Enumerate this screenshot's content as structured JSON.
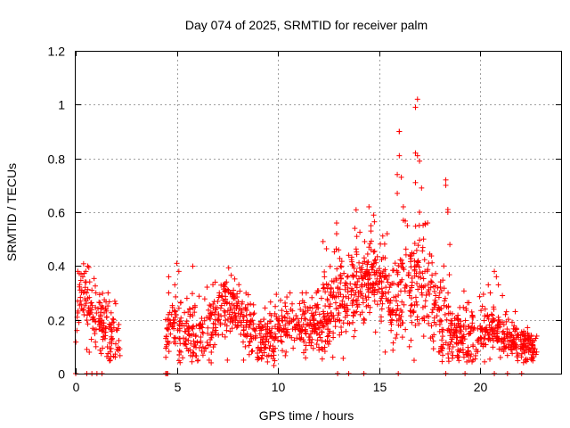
{
  "chart_data": {
    "type": "scatter",
    "title": "Day 074 of 2025, SRMTID for receiver palm",
    "xlabel": "GPS time / hours",
    "ylabel": "SRMTID / TECUs",
    "xlim": [
      0,
      24
    ],
    "ylim": [
      0,
      1.2
    ],
    "xticks": [
      0,
      5,
      10,
      15,
      20
    ],
    "xtick_labels": [
      "0",
      "5",
      "10",
      "15",
      "20"
    ],
    "yticks": [
      0,
      0.2,
      0.4,
      0.6,
      0.8,
      1.0,
      1.2
    ],
    "ytick_labels": [
      "0",
      "0.2",
      "0.4",
      "0.6",
      "0.8",
      "1",
      "1.2"
    ],
    "grid": true,
    "marker": "+",
    "color": "#ff0000",
    "series": [
      {
        "name": "SRMTID",
        "segments": [
          {
            "start": 0.0,
            "end": 2.2,
            "n": 170,
            "base": [
              [
                0.0,
                0.17
              ],
              [
                0.3,
                0.3
              ],
              [
                0.7,
                0.24
              ],
              [
                1.2,
                0.18
              ],
              [
                1.7,
                0.15
              ],
              [
                2.2,
                0.12
              ]
            ],
            "spread": 0.06
          },
          {
            "start": 4.45,
            "end": 7.0,
            "n": 200,
            "base": [
              [
                4.45,
                0.17
              ],
              [
                5.0,
                0.16
              ],
              [
                5.8,
                0.14
              ],
              [
                6.5,
                0.15
              ],
              [
                7.0,
                0.2
              ]
            ],
            "spread": 0.055
          },
          {
            "start": 7.0,
            "end": 9.0,
            "n": 170,
            "base": [
              [
                7.0,
                0.24
              ],
              [
                7.6,
                0.26
              ],
              [
                8.3,
                0.2
              ],
              [
                9.0,
                0.14
              ]
            ],
            "spread": 0.05
          },
          {
            "start": 9.0,
            "end": 12.0,
            "n": 240,
            "base": [
              [
                9.0,
                0.12
              ],
              [
                9.8,
                0.14
              ],
              [
                10.5,
                0.19
              ],
              [
                11.2,
                0.17
              ],
              [
                12.0,
                0.19
              ]
            ],
            "spread": 0.045
          },
          {
            "start": 12.0,
            "end": 14.0,
            "n": 200,
            "base": [
              [
                12.0,
                0.2
              ],
              [
                12.6,
                0.25
              ],
              [
                13.2,
                0.3
              ],
              [
                14.0,
                0.28
              ]
            ],
            "spread": 0.08
          },
          {
            "start": 14.0,
            "end": 15.5,
            "n": 150,
            "base": [
              [
                14.0,
                0.3
              ],
              [
                14.5,
                0.35
              ],
              [
                15.0,
                0.32
              ],
              [
                15.5,
                0.3
              ]
            ],
            "spread": 0.07
          },
          {
            "start": 15.5,
            "end": 18.5,
            "n": 260,
            "base": [
              [
                15.5,
                0.2
              ],
              [
                16.0,
                0.3
              ],
              [
                16.5,
                0.32
              ],
              [
                17.0,
                0.35
              ],
              [
                17.5,
                0.28
              ],
              [
                18.0,
                0.2
              ],
              [
                18.5,
                0.16
              ]
            ],
            "spread": 0.09
          },
          {
            "start": 18.5,
            "end": 20.8,
            "n": 200,
            "base": [
              [
                18.5,
                0.15
              ],
              [
                19.2,
                0.14
              ],
              [
                20.0,
                0.15
              ],
              [
                20.8,
                0.16
              ]
            ],
            "spread": 0.05
          },
          {
            "start": 20.8,
            "end": 22.8,
            "n": 180,
            "base": [
              [
                20.8,
                0.15
              ],
              [
                21.5,
                0.12
              ],
              [
                22.2,
                0.11
              ],
              [
                22.8,
                0.1
              ]
            ],
            "spread": 0.035
          }
        ],
        "spikes": [
          [
            0.1,
            0.38
          ],
          [
            0.35,
            0.36
          ],
          [
            0.5,
            0.38
          ],
          [
            0.8,
            0.31
          ],
          [
            1.0,
            0.3
          ],
          [
            1.6,
            0.3
          ],
          [
            4.6,
            0.3
          ],
          [
            4.6,
            0.36
          ],
          [
            4.9,
            0.33
          ],
          [
            5.0,
            0.41
          ],
          [
            5.1,
            0.38
          ],
          [
            5.5,
            0.28
          ],
          [
            6.9,
            0.34
          ],
          [
            7.1,
            0.3
          ],
          [
            7.3,
            0.33
          ],
          [
            7.8,
            0.31
          ],
          [
            10.6,
            0.3
          ],
          [
            11.2,
            0.3
          ],
          [
            11.4,
            0.3
          ],
          [
            11.9,
            0.3
          ],
          [
            12.3,
            0.36
          ],
          [
            12.5,
            0.33
          ],
          [
            12.9,
            0.56
          ],
          [
            12.9,
            0.52
          ],
          [
            13.0,
            0.46
          ],
          [
            13.1,
            0.4
          ],
          [
            13.5,
            0.44
          ],
          [
            13.8,
            0.54
          ],
          [
            13.9,
            0.51
          ],
          [
            14.2,
            0.41
          ],
          [
            14.5,
            0.47
          ],
          [
            14.5,
            0.62
          ],
          [
            14.6,
            0.55
          ],
          [
            14.6,
            0.53
          ],
          [
            14.7,
            0.4
          ],
          [
            15.3,
            0.43
          ],
          [
            15.4,
            0.52
          ],
          [
            15.9,
            0.67
          ],
          [
            15.9,
            0.74
          ],
          [
            16.0,
            0.81
          ],
          [
            16.0,
            0.9
          ],
          [
            16.0,
            0.9
          ],
          [
            16.1,
            0.73
          ],
          [
            16.2,
            0.57
          ],
          [
            16.2,
            0.62
          ],
          [
            16.4,
            0.55
          ],
          [
            16.8,
            0.99
          ],
          [
            16.9,
            1.02
          ],
          [
            16.9,
            0.81
          ],
          [
            16.8,
            0.82
          ],
          [
            16.8,
            0.71
          ],
          [
            17.0,
            0.79
          ],
          [
            17.0,
            0.6
          ],
          [
            17.1,
            0.69
          ],
          [
            17.2,
            0.5
          ],
          [
            17.4,
            0.56
          ],
          [
            18.3,
            0.72
          ],
          [
            18.3,
            0.7
          ],
          [
            18.4,
            0.6
          ],
          [
            18.4,
            0.61
          ],
          [
            18.5,
            0.48
          ],
          [
            18.2,
            0.4
          ],
          [
            20.4,
            0.33
          ],
          [
            20.5,
            0.3
          ],
          [
            20.7,
            0.38
          ],
          [
            20.8,
            0.36
          ],
          [
            20.9,
            0.33
          ],
          [
            21.1,
            0.29
          ],
          [
            21.3,
            0.23
          ],
          [
            0.55,
            0.09
          ],
          [
            1.0,
            0.1
          ],
          [
            5.2,
            0.08
          ],
          [
            6.6,
            0.05
          ],
          [
            6.7,
            0.04
          ],
          [
            7.5,
            0.05
          ],
          [
            8.3,
            0.05
          ],
          [
            9.8,
            0.03
          ],
          [
            10.4,
            0.08
          ],
          [
            12.2,
            0.09
          ],
          [
            15.3,
            0.08
          ],
          [
            16.5,
            0.1
          ],
          [
            18.9,
            0.06
          ],
          [
            19.8,
            0.09
          ],
          [
            21.0,
            0.06
          ],
          [
            22.4,
            0.08
          ]
        ],
        "zeros": [
          0.0,
          0.55,
          0.8,
          1.05,
          1.3,
          4.45,
          4.5,
          4.55,
          12.95,
          13.5,
          14.25,
          15.95,
          18.3,
          19.25,
          20.7,
          21.35,
          22.05
        ]
      }
    ]
  }
}
